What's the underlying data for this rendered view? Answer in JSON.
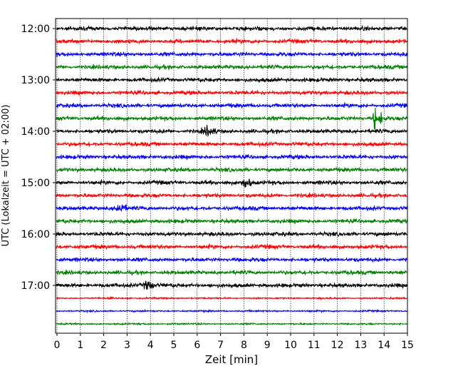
{
  "chart_data": {
    "type": "line",
    "title": "",
    "xlabel": "Zeit  [min]",
    "ylabel": "UTC (Lokalzeit = UTC + 02:00)",
    "xlim": [
      0,
      15
    ],
    "x_ticks": [
      0,
      1,
      2,
      3,
      4,
      5,
      6,
      7,
      8,
      9,
      10,
      11,
      12,
      13,
      14,
      15
    ],
    "y_ticks": [
      "12:00",
      "13:00",
      "14:00",
      "15:00",
      "16:00",
      "17:00"
    ],
    "traces_per_hour": 4,
    "trace_start_times": [
      "12:00",
      "12:15",
      "12:30",
      "12:45",
      "13:00",
      "13:15",
      "13:30",
      "13:45",
      "14:00",
      "14:15",
      "14:30",
      "14:45",
      "15:00",
      "15:15",
      "15:30",
      "15:45",
      "16:00",
      "16:15",
      "16:30",
      "16:45",
      "17:00",
      "17:15",
      "17:30",
      "17:45"
    ],
    "trace_colors": [
      "#000000",
      "#ff0000",
      "#0000ff",
      "#008000"
    ],
    "gridlines": "vertical, dotted",
    "events": [
      {
        "trace": "13:45",
        "minute": 13.6,
        "note": "sharp spike"
      },
      {
        "trace": "13:45",
        "minute": 13.85,
        "note": "sharp spike"
      },
      {
        "trace": "17:00",
        "minute": 3.9,
        "note": "burst"
      },
      {
        "trace": "15:00",
        "minute": 8.1,
        "note": "burst"
      },
      {
        "trace": "15:30",
        "minute": 2.7,
        "note": "burst"
      },
      {
        "trace": "14:00",
        "minute": 6.5,
        "note": "burst"
      }
    ]
  }
}
